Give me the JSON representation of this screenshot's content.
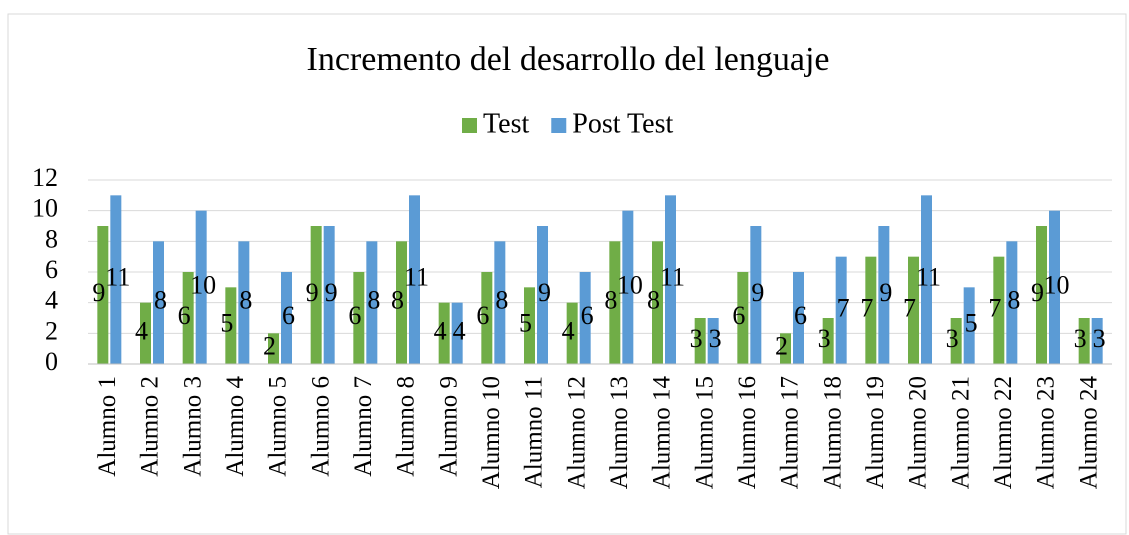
{
  "chart_data": {
    "type": "bar",
    "title": "Incremento del desarrollo del lenguaje",
    "categories": [
      "Alumno 1",
      "Alumno 2",
      "Alumno 3",
      "Alumno 4",
      "Alumno 5",
      "Alumno 6",
      "Alumno 7",
      "Alumno 8",
      "Alumno 9",
      "Alumno 10",
      "Alumno 11",
      "Alumno 12",
      "Alumno 13",
      "Alumno 14",
      "Alumno 15",
      "Alumno 16",
      "Alumno 17",
      "Alumno 18",
      "Alumno 19",
      "Alumno 20",
      "Alumno 21",
      "Alumno 22",
      "Alumno 23",
      "Alumno 24"
    ],
    "series": [
      {
        "name": "Test",
        "color": "#70ad47",
        "values": [
          9,
          4,
          6,
          5,
          2,
          9,
          6,
          8,
          4,
          6,
          5,
          4,
          8,
          8,
          3,
          6,
          2,
          3,
          7,
          7,
          3,
          7,
          9,
          3
        ]
      },
      {
        "name": "Post Test",
        "color": "#5b9bd5",
        "values": [
          11,
          8,
          10,
          8,
          6,
          9,
          8,
          11,
          4,
          8,
          9,
          6,
          10,
          11,
          3,
          9,
          6,
          7,
          9,
          11,
          5,
          8,
          10,
          3
        ]
      }
    ],
    "ylim": [
      0,
      12
    ],
    "yticks": [
      0,
      2,
      4,
      6,
      8,
      10,
      12
    ],
    "grid": true,
    "legend": "top"
  }
}
